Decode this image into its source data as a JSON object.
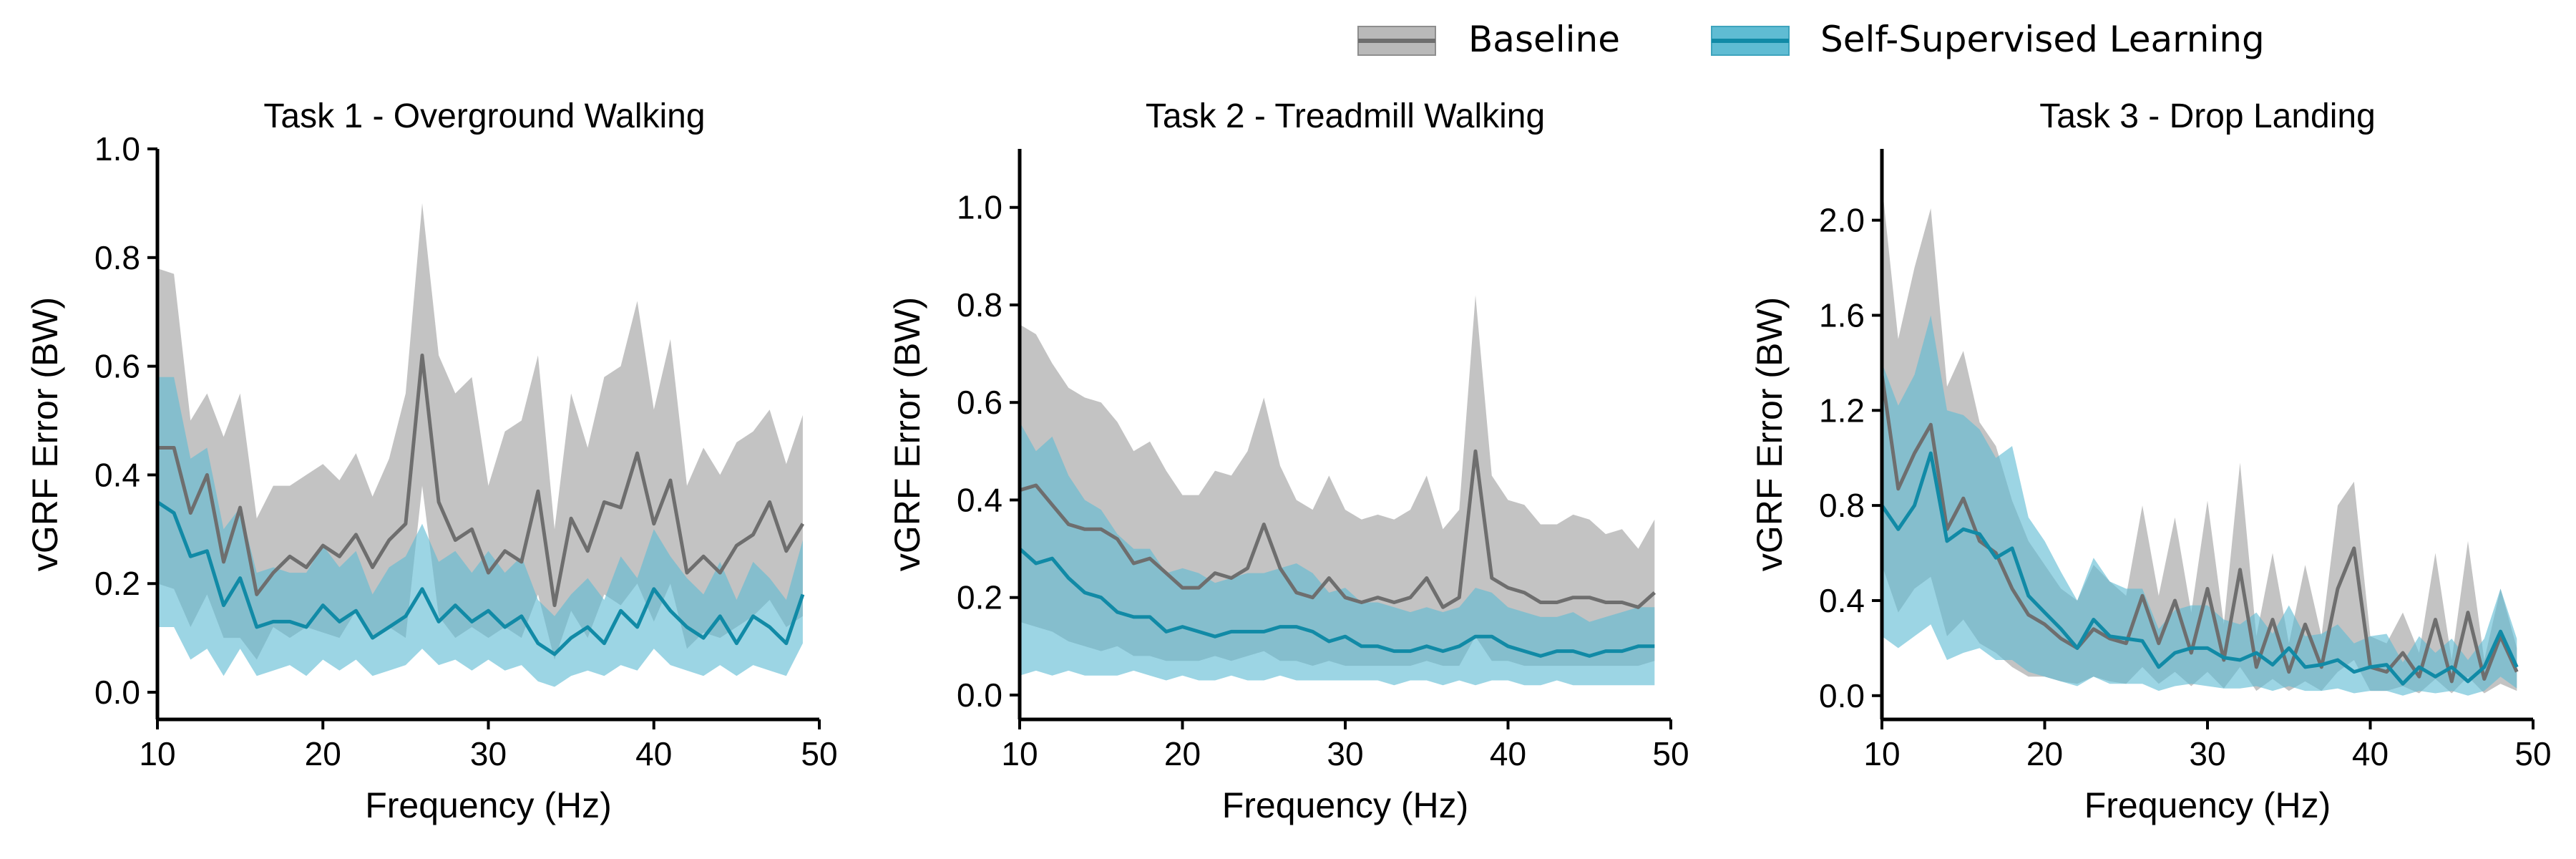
{
  "legend": {
    "position": "top-right",
    "entries": [
      {
        "label": "Baseline",
        "color": "#6e6e6e",
        "fill": "#b9b9b9"
      },
      {
        "label": "Self-Supervised Learning",
        "color": "#118aa6",
        "fill": "#5fbcd3"
      }
    ]
  },
  "chart_data": [
    {
      "type": "line",
      "title": "Task 1 - Overground Walking",
      "xlabel": "Frequency (Hz)",
      "ylabel": "vGRF Error (BW)",
      "xlim": [
        10,
        50
      ],
      "ylim": [
        -0.05,
        1.0
      ],
      "xticks": [
        10,
        20,
        30,
        40,
        50
      ],
      "xtick_labels": [
        "10",
        "20",
        "30",
        "40",
        "50"
      ],
      "yticks": [
        0.0,
        0.2,
        0.4,
        0.6,
        0.8,
        1.0
      ],
      "ytick_labels": [
        "0.0",
        "0.2",
        "0.4",
        "0.6",
        "0.8",
        "1.0"
      ],
      "grid": false,
      "x": [
        10,
        11,
        12,
        13,
        14,
        15,
        16,
        17,
        18,
        19,
        20,
        21,
        22,
        23,
        24,
        25,
        26,
        27,
        28,
        29,
        30,
        31,
        32,
        33,
        34,
        35,
        36,
        37,
        38,
        39,
        40,
        41,
        42,
        43,
        44,
        45,
        46,
        47,
        48,
        49
      ],
      "series": [
        {
          "name": "Baseline",
          "mean": [
            0.45,
            0.45,
            0.33,
            0.4,
            0.24,
            0.34,
            0.18,
            0.22,
            0.25,
            0.23,
            0.27,
            0.25,
            0.29,
            0.23,
            0.28,
            0.31,
            0.62,
            0.35,
            0.28,
            0.3,
            0.22,
            0.26,
            0.24,
            0.37,
            0.16,
            0.32,
            0.26,
            0.35,
            0.34,
            0.44,
            0.31,
            0.39,
            0.22,
            0.25,
            0.22,
            0.27,
            0.29,
            0.35,
            0.26,
            0.31
          ],
          "lower": [
            0.2,
            0.19,
            0.12,
            0.18,
            0.1,
            0.1,
            0.06,
            0.12,
            0.1,
            0.12,
            0.11,
            0.1,
            0.15,
            0.1,
            0.12,
            0.1,
            0.38,
            0.14,
            0.1,
            0.12,
            0.1,
            0.12,
            0.1,
            0.18,
            0.06,
            0.15,
            0.1,
            0.18,
            0.16,
            0.2,
            0.13,
            0.2,
            0.08,
            0.11,
            0.1,
            0.12,
            0.14,
            0.17,
            0.12,
            0.14
          ],
          "upper": [
            0.78,
            0.77,
            0.5,
            0.55,
            0.47,
            0.55,
            0.32,
            0.38,
            0.38,
            0.4,
            0.42,
            0.39,
            0.44,
            0.36,
            0.43,
            0.55,
            0.9,
            0.62,
            0.55,
            0.58,
            0.38,
            0.48,
            0.5,
            0.62,
            0.3,
            0.55,
            0.45,
            0.58,
            0.6,
            0.72,
            0.52,
            0.65,
            0.38,
            0.45,
            0.4,
            0.46,
            0.48,
            0.52,
            0.42,
            0.51
          ]
        },
        {
          "name": "Self-Supervised Learning",
          "mean": [
            0.35,
            0.33,
            0.25,
            0.26,
            0.16,
            0.21,
            0.12,
            0.13,
            0.13,
            0.12,
            0.16,
            0.13,
            0.15,
            0.1,
            0.12,
            0.14,
            0.19,
            0.13,
            0.16,
            0.13,
            0.15,
            0.12,
            0.14,
            0.09,
            0.07,
            0.1,
            0.12,
            0.09,
            0.15,
            0.12,
            0.19,
            0.15,
            0.12,
            0.1,
            0.14,
            0.09,
            0.14,
            0.12,
            0.09,
            0.18
          ],
          "lower": [
            0.12,
            0.12,
            0.06,
            0.08,
            0.03,
            0.08,
            0.03,
            0.04,
            0.05,
            0.03,
            0.06,
            0.04,
            0.06,
            0.03,
            0.04,
            0.05,
            0.08,
            0.05,
            0.06,
            0.04,
            0.06,
            0.04,
            0.05,
            0.02,
            0.01,
            0.03,
            0.04,
            0.03,
            0.05,
            0.04,
            0.08,
            0.05,
            0.04,
            0.03,
            0.05,
            0.03,
            0.05,
            0.04,
            0.03,
            0.09
          ],
          "upper": [
            0.58,
            0.58,
            0.43,
            0.45,
            0.3,
            0.34,
            0.22,
            0.23,
            0.22,
            0.22,
            0.27,
            0.23,
            0.26,
            0.18,
            0.23,
            0.25,
            0.31,
            0.24,
            0.26,
            0.22,
            0.26,
            0.22,
            0.25,
            0.17,
            0.14,
            0.18,
            0.21,
            0.17,
            0.25,
            0.21,
            0.3,
            0.25,
            0.21,
            0.18,
            0.24,
            0.17,
            0.24,
            0.21,
            0.17,
            0.28
          ]
        }
      ]
    },
    {
      "type": "line",
      "title": "Task 2 - Treadmill Walking",
      "xlabel": "Frequency (Hz)",
      "ylabel": "vGRF Error (BW)",
      "xlim": [
        10,
        50
      ],
      "ylim": [
        -0.05,
        1.12
      ],
      "xticks": [
        10,
        20,
        30,
        40,
        50
      ],
      "xtick_labels": [
        "10",
        "20",
        "30",
        "40",
        "50"
      ],
      "yticks": [
        0.0,
        0.2,
        0.4,
        0.6,
        0.8,
        1.0
      ],
      "ytick_labels": [
        "0.0",
        "0.2",
        "0.4",
        "0.6",
        "0.8",
        "1.0"
      ],
      "grid": false,
      "x": [
        10,
        11,
        12,
        13,
        14,
        15,
        16,
        17,
        18,
        19,
        20,
        21,
        22,
        23,
        24,
        25,
        26,
        27,
        28,
        29,
        30,
        31,
        32,
        33,
        34,
        35,
        36,
        37,
        38,
        39,
        40,
        41,
        42,
        43,
        44,
        45,
        46,
        47,
        48,
        49
      ],
      "series": [
        {
          "name": "Baseline",
          "mean": [
            0.42,
            0.43,
            0.39,
            0.35,
            0.34,
            0.34,
            0.32,
            0.27,
            0.28,
            0.25,
            0.22,
            0.22,
            0.25,
            0.24,
            0.26,
            0.35,
            0.26,
            0.21,
            0.2,
            0.24,
            0.2,
            0.19,
            0.2,
            0.19,
            0.2,
            0.24,
            0.18,
            0.2,
            0.5,
            0.24,
            0.22,
            0.21,
            0.19,
            0.19,
            0.2,
            0.2,
            0.19,
            0.19,
            0.18,
            0.21
          ],
          "lower": [
            0.15,
            0.14,
            0.13,
            0.11,
            0.1,
            0.09,
            0.1,
            0.08,
            0.08,
            0.07,
            0.07,
            0.07,
            0.08,
            0.07,
            0.08,
            0.09,
            0.07,
            0.07,
            0.06,
            0.07,
            0.06,
            0.06,
            0.06,
            0.06,
            0.06,
            0.07,
            0.06,
            0.06,
            0.12,
            0.07,
            0.07,
            0.06,
            0.06,
            0.06,
            0.06,
            0.06,
            0.06,
            0.06,
            0.06,
            0.07
          ],
          "upper": [
            0.76,
            0.74,
            0.68,
            0.63,
            0.61,
            0.6,
            0.56,
            0.5,
            0.52,
            0.46,
            0.41,
            0.41,
            0.46,
            0.45,
            0.5,
            0.61,
            0.47,
            0.4,
            0.38,
            0.45,
            0.38,
            0.36,
            0.37,
            0.36,
            0.38,
            0.45,
            0.34,
            0.38,
            0.82,
            0.45,
            0.4,
            0.39,
            0.35,
            0.35,
            0.37,
            0.36,
            0.33,
            0.34,
            0.3,
            0.36
          ]
        },
        {
          "name": "Self-Supervised Learning",
          "mean": [
            0.3,
            0.27,
            0.28,
            0.24,
            0.21,
            0.2,
            0.17,
            0.16,
            0.16,
            0.13,
            0.14,
            0.13,
            0.12,
            0.13,
            0.13,
            0.13,
            0.14,
            0.14,
            0.13,
            0.11,
            0.12,
            0.1,
            0.1,
            0.09,
            0.09,
            0.1,
            0.09,
            0.1,
            0.12,
            0.12,
            0.1,
            0.09,
            0.08,
            0.09,
            0.09,
            0.08,
            0.09,
            0.09,
            0.1,
            0.1
          ],
          "lower": [
            0.04,
            0.05,
            0.04,
            0.05,
            0.04,
            0.04,
            0.04,
            0.05,
            0.04,
            0.03,
            0.04,
            0.03,
            0.03,
            0.04,
            0.03,
            0.03,
            0.04,
            0.03,
            0.03,
            0.03,
            0.03,
            0.03,
            0.03,
            0.02,
            0.03,
            0.03,
            0.02,
            0.03,
            0.02,
            0.03,
            0.03,
            0.02,
            0.02,
            0.03,
            0.02,
            0.02,
            0.02,
            0.02,
            0.02,
            0.02
          ],
          "upper": [
            0.56,
            0.5,
            0.53,
            0.45,
            0.4,
            0.38,
            0.33,
            0.3,
            0.3,
            0.25,
            0.26,
            0.25,
            0.23,
            0.24,
            0.25,
            0.25,
            0.26,
            0.27,
            0.25,
            0.21,
            0.22,
            0.19,
            0.19,
            0.18,
            0.17,
            0.18,
            0.17,
            0.18,
            0.22,
            0.21,
            0.18,
            0.17,
            0.16,
            0.16,
            0.17,
            0.15,
            0.16,
            0.17,
            0.18,
            0.18
          ]
        }
      ]
    },
    {
      "type": "line",
      "title": "Task 3 - Drop Landing",
      "xlabel": "Frequency (Hz)",
      "ylabel": "vGRF Error (BW)",
      "xlim": [
        10,
        50
      ],
      "ylim": [
        -0.1,
        2.3
      ],
      "xticks": [
        10,
        20,
        30,
        40,
        50
      ],
      "xtick_labels": [
        "10",
        "20",
        "30",
        "40",
        "50"
      ],
      "yticks": [
        0.0,
        0.4,
        0.8,
        1.2,
        1.6,
        2.0
      ],
      "ytick_labels": [
        "0.0",
        "0.4",
        "0.8",
        "1.2",
        "1.6",
        "2.0"
      ],
      "grid": false,
      "x": [
        10,
        11,
        12,
        13,
        14,
        15,
        16,
        17,
        18,
        19,
        20,
        21,
        22,
        23,
        24,
        25,
        26,
        27,
        28,
        29,
        30,
        31,
        32,
        33,
        34,
        35,
        36,
        37,
        38,
        39,
        40,
        41,
        42,
        43,
        44,
        45,
        46,
        47,
        48,
        49
      ],
      "series": [
        {
          "name": "Baseline",
          "mean": [
            1.35,
            0.87,
            1.02,
            1.14,
            0.7,
            0.83,
            0.65,
            0.6,
            0.45,
            0.34,
            0.3,
            0.24,
            0.2,
            0.28,
            0.24,
            0.22,
            0.42,
            0.22,
            0.4,
            0.18,
            0.45,
            0.15,
            0.53,
            0.12,
            0.32,
            0.1,
            0.3,
            0.12,
            0.45,
            0.62,
            0.12,
            0.1,
            0.18,
            0.08,
            0.32,
            0.06,
            0.35,
            0.07,
            0.25,
            0.1
          ],
          "lower": [
            0.55,
            0.35,
            0.45,
            0.5,
            0.25,
            0.32,
            0.22,
            0.18,
            0.12,
            0.08,
            0.08,
            0.06,
            0.05,
            0.08,
            0.06,
            0.05,
            0.12,
            0.05,
            0.1,
            0.04,
            0.1,
            0.03,
            0.12,
            0.02,
            0.07,
            0.02,
            0.06,
            0.02,
            0.1,
            0.15,
            0.02,
            0.02,
            0.04,
            0.01,
            0.07,
            0.01,
            0.08,
            0.01,
            0.05,
            0.02
          ],
          "upper": [
            2.15,
            1.5,
            1.8,
            2.05,
            1.3,
            1.45,
            1.15,
            1.05,
            0.82,
            0.65,
            0.55,
            0.45,
            0.4,
            0.55,
            0.48,
            0.42,
            0.8,
            0.42,
            0.75,
            0.35,
            0.82,
            0.3,
            0.98,
            0.25,
            0.6,
            0.22,
            0.55,
            0.25,
            0.8,
            0.9,
            0.25,
            0.22,
            0.35,
            0.18,
            0.6,
            0.15,
            0.65,
            0.15,
            0.45,
            0.2
          ]
        },
        {
          "name": "Self-Supervised Learning",
          "mean": [
            0.8,
            0.7,
            0.8,
            1.02,
            0.65,
            0.7,
            0.68,
            0.58,
            0.62,
            0.42,
            0.35,
            0.28,
            0.2,
            0.32,
            0.25,
            0.24,
            0.23,
            0.12,
            0.18,
            0.2,
            0.2,
            0.16,
            0.15,
            0.18,
            0.13,
            0.2,
            0.12,
            0.13,
            0.15,
            0.1,
            0.12,
            0.13,
            0.05,
            0.12,
            0.08,
            0.12,
            0.06,
            0.12,
            0.27,
            0.12
          ],
          "lower": [
            0.25,
            0.2,
            0.25,
            0.3,
            0.15,
            0.18,
            0.2,
            0.15,
            0.15,
            0.1,
            0.08,
            0.06,
            0.04,
            0.08,
            0.05,
            0.05,
            0.05,
            0.02,
            0.04,
            0.05,
            0.04,
            0.03,
            0.03,
            0.04,
            0.02,
            0.04,
            0.02,
            0.02,
            0.03,
            0.01,
            0.02,
            0.02,
            0.0,
            0.02,
            0.01,
            0.02,
            0.0,
            0.02,
            0.08,
            0.03
          ],
          "upper": [
            1.4,
            1.22,
            1.35,
            1.6,
            1.2,
            1.18,
            1.12,
            1.0,
            1.05,
            0.75,
            0.65,
            0.52,
            0.4,
            0.58,
            0.48,
            0.45,
            0.45,
            0.28,
            0.36,
            0.38,
            0.38,
            0.32,
            0.3,
            0.35,
            0.26,
            0.38,
            0.25,
            0.26,
            0.3,
            0.22,
            0.25,
            0.26,
            0.14,
            0.25,
            0.18,
            0.24,
            0.15,
            0.24,
            0.45,
            0.24
          ]
        }
      ]
    }
  ]
}
